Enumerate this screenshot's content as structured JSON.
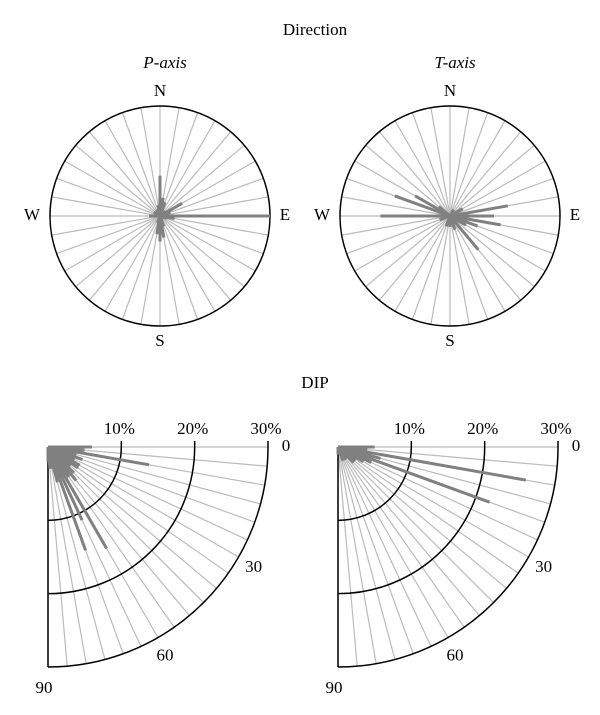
{
  "headings": [
    "Direction",
    "DIP"
  ],
  "chart_data": [
    {
      "type": "rose",
      "title": "P-axis",
      "color": "#808080",
      "compass": [
        "N",
        "E",
        "S",
        "W"
      ],
      "theta": [
        0,
        10,
        20,
        30,
        40,
        50,
        60,
        70,
        80,
        90,
        100,
        110,
        120,
        130,
        140,
        150,
        160,
        170,
        180,
        190,
        200,
        210,
        220,
        230,
        240,
        250,
        260,
        270,
        280,
        290,
        300,
        310,
        320,
        330,
        340,
        350
      ],
      "values": [
        11,
        5,
        4,
        0,
        0,
        2,
        7,
        3,
        0,
        30,
        4,
        2,
        0,
        0,
        0,
        0,
        3,
        6,
        7,
        5,
        2,
        0,
        0,
        0,
        0,
        0,
        0,
        3,
        0,
        0,
        2,
        0,
        0,
        2,
        0,
        3
      ],
      "rlim": [
        0,
        30
      ]
    },
    {
      "type": "rose",
      "title": "T-axis",
      "color": "#808080",
      "compass": [
        "N",
        "E",
        "S",
        "W"
      ],
      "theta": [
        0,
        10,
        20,
        30,
        40,
        50,
        60,
        70,
        80,
        90,
        100,
        110,
        120,
        130,
        140,
        150,
        160,
        170,
        180,
        190,
        200,
        210,
        220,
        230,
        240,
        250,
        260,
        270,
        280,
        290,
        300,
        310,
        320,
        330,
        340,
        350
      ],
      "values": [
        0,
        0,
        0,
        2,
        0,
        0,
        4,
        0,
        16,
        12,
        14,
        8,
        5,
        0,
        12,
        0,
        4,
        0,
        3,
        0,
        3,
        0,
        0,
        0,
        0,
        3,
        0,
        19,
        0,
        16,
        11,
        4,
        0,
        0,
        0,
        0
      ],
      "rlim": [
        0,
        30
      ]
    },
    {
      "type": "quarter-rose",
      "color": "#808080",
      "theta": [
        0,
        5,
        10,
        15,
        20,
        25,
        30,
        35,
        40,
        45,
        50,
        55,
        60,
        65,
        70,
        75,
        80,
        85,
        90
      ],
      "values": [
        6,
        5,
        14,
        4,
        5,
        4,
        5,
        5,
        4,
        5,
        6,
        5,
        16,
        11,
        15,
        5,
        3,
        3,
        2
      ],
      "rlim": [
        0,
        30
      ],
      "rticks": [
        {
          "value": 10,
          "label": "10%"
        },
        {
          "value": 20,
          "label": "20%"
        },
        {
          "value": 30,
          "label": "30%"
        }
      ],
      "thetaticks": [
        0,
        30,
        60,
        90
      ]
    },
    {
      "type": "quarter-rose",
      "color": "#808080",
      "theta": [
        0,
        5,
        10,
        15,
        20,
        25,
        30,
        35,
        40,
        45,
        50,
        55,
        60,
        65,
        70,
        75,
        80,
        85,
        90
      ],
      "values": [
        5,
        4,
        26,
        6,
        22,
        5,
        4,
        3,
        3,
        3,
        2,
        2,
        2,
        2,
        2,
        1,
        1,
        1,
        1
      ],
      "rlim": [
        0,
        30
      ],
      "rticks": [
        {
          "value": 10,
          "label": "10%"
        },
        {
          "value": 20,
          "label": "20%"
        },
        {
          "value": 30,
          "label": "30%"
        }
      ],
      "thetaticks": [
        0,
        30,
        60,
        90
      ]
    }
  ]
}
